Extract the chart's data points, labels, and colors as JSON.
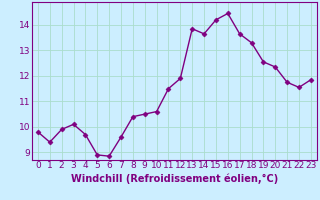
{
  "x": [
    0,
    1,
    2,
    3,
    4,
    5,
    6,
    7,
    8,
    9,
    10,
    11,
    12,
    13,
    14,
    15,
    16,
    17,
    18,
    19,
    20,
    21,
    22,
    23
  ],
  "y": [
    9.8,
    9.4,
    9.9,
    10.1,
    9.7,
    8.9,
    8.85,
    9.6,
    10.4,
    10.5,
    10.6,
    11.5,
    11.9,
    13.85,
    13.65,
    14.2,
    14.45,
    13.65,
    13.3,
    12.55,
    12.35,
    11.75,
    11.55,
    11.85
  ],
  "line_color": "#800080",
  "marker": "D",
  "marker_size": 2.5,
  "background_color": "#cceeff",
  "grid_color": "#aaddcc",
  "ylim": [
    8.7,
    14.9
  ],
  "yticks": [
    9,
    10,
    11,
    12,
    13,
    14
  ],
  "xlabel": "Windchill (Refroidissement éolien,°C)",
  "xlabel_fontsize": 7,
  "tick_fontsize": 6.5,
  "line_width": 1.0
}
